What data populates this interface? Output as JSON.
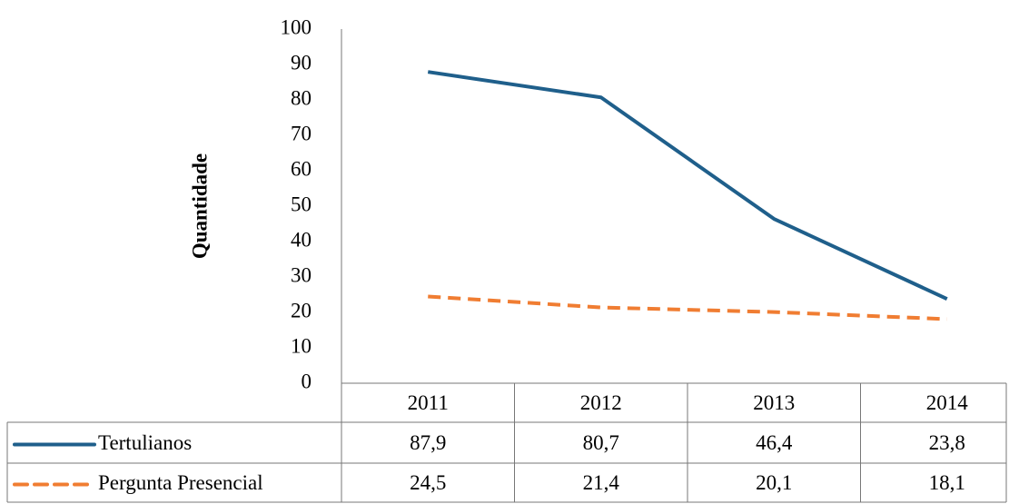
{
  "chart_data": {
    "type": "line",
    "y_label": "Quantidade",
    "categories": [
      "2011",
      "2012",
      "2013",
      "2014"
    ],
    "series": [
      {
        "name": "Tertulianos",
        "color": "#1f5f8b",
        "dash": false,
        "values": [
          87.9,
          80.7,
          46.4,
          23.8
        ],
        "value_labels": [
          "87,9",
          "80,7",
          "46,4",
          "23,8"
        ]
      },
      {
        "name": "Pergunta Presencial",
        "color": "#f07d32",
        "dash": true,
        "values": [
          24.5,
          21.4,
          20.1,
          18.1
        ],
        "value_labels": [
          "24,5",
          "21,4",
          "20,1",
          "18,1"
        ]
      }
    ],
    "ylim": [
      0,
      100
    ],
    "yticks": [
      0,
      10,
      20,
      30,
      40,
      50,
      60,
      70,
      80,
      90,
      100
    ],
    "grid": false
  }
}
